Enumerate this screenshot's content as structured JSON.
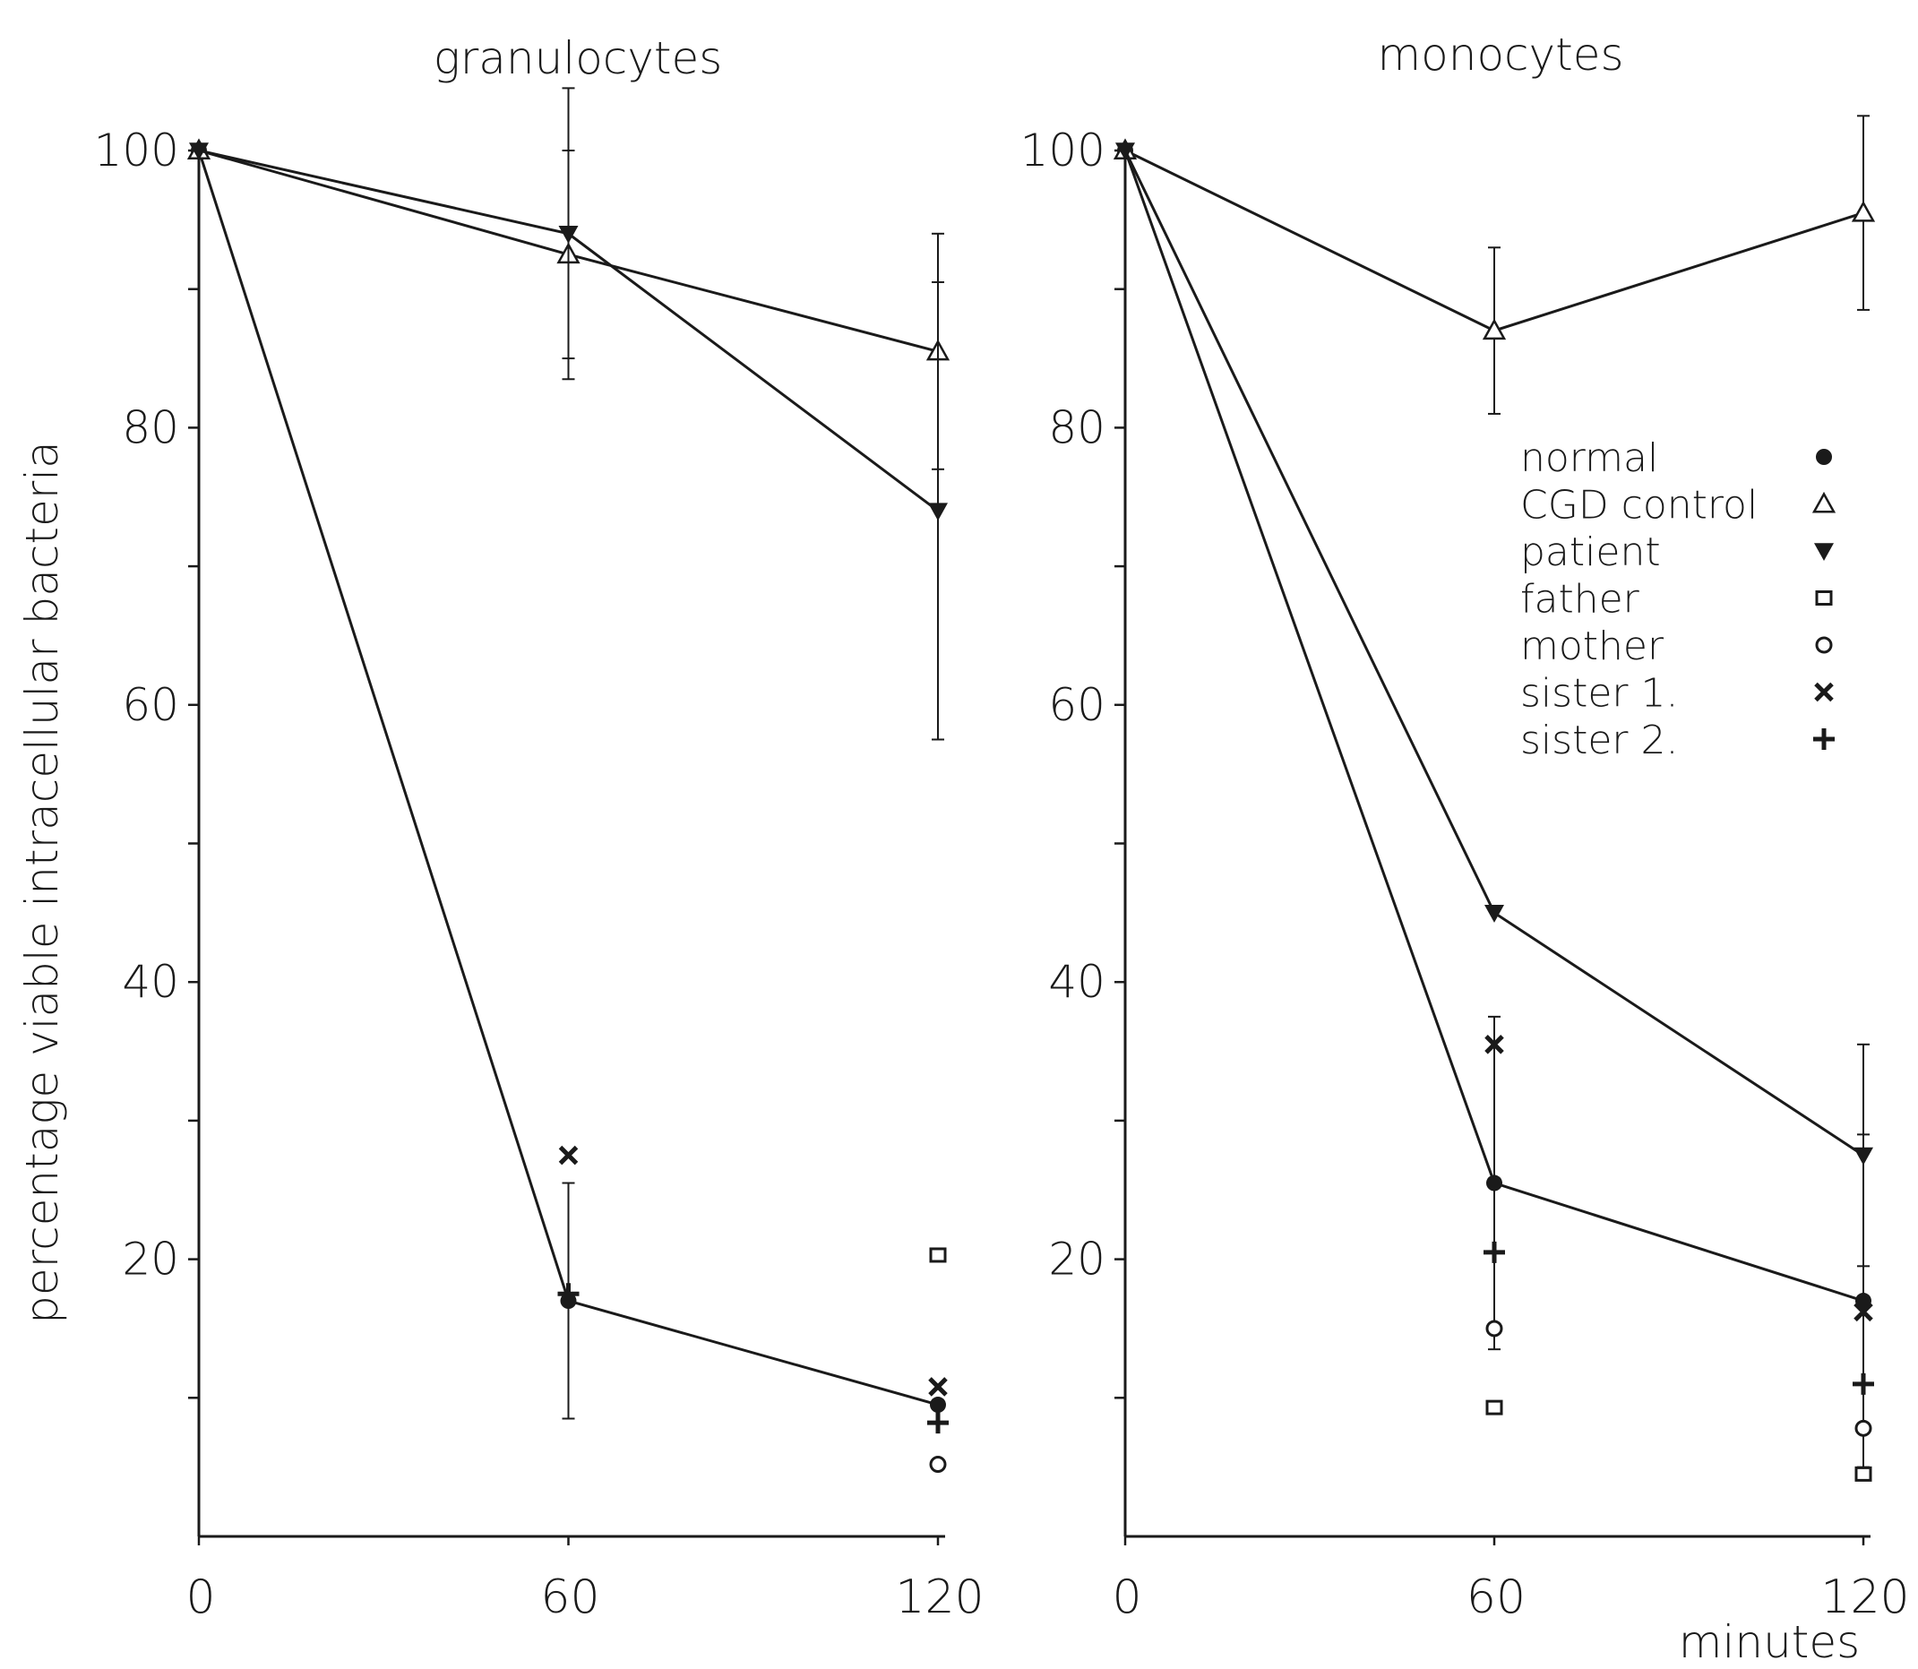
{
  "chart_data": [
    {
      "type": "line",
      "title": "granulocytes",
      "ylabel": "percentage viable intracellular bacteria",
      "xlabel": "",
      "xlim": [
        0,
        120
      ],
      "ylim": [
        0,
        100
      ],
      "xticks": [
        "0",
        "60",
        "120"
      ],
      "yticks": [
        "20",
        "40",
        "60",
        "80",
        "100"
      ],
      "series": [
        {
          "name": "normal",
          "marker": "circle",
          "connected": true,
          "x": [
            0,
            60,
            120
          ],
          "y": [
            100,
            17,
            9.5
          ],
          "err": [
            null,
            8.5,
            null
          ]
        },
        {
          "name": "CGD control",
          "marker": "triangle-open",
          "connected": true,
          "x": [
            0,
            60,
            120
          ],
          "y": [
            100,
            92.5,
            85.5
          ],
          "err": [
            null,
            7.5,
            8.5
          ]
        },
        {
          "name": "patient",
          "marker": "triangle-down-filled",
          "connected": true,
          "x": [
            0,
            60,
            120
          ],
          "y": [
            100,
            94,
            74
          ],
          "err": [
            null,
            10.5,
            16.5
          ]
        },
        {
          "name": "father",
          "marker": "square-open",
          "connected": false,
          "x": [
            120
          ],
          "y": [
            20.3
          ],
          "err": [
            null
          ]
        },
        {
          "name": "mother",
          "marker": "circle-open",
          "connected": false,
          "x": [
            120
          ],
          "y": [
            5.2
          ],
          "err": [
            null
          ]
        },
        {
          "name": "sister 1.",
          "marker": "x",
          "connected": false,
          "x": [
            60,
            120
          ],
          "y": [
            27.5,
            10.8
          ],
          "err": [
            null,
            null
          ]
        },
        {
          "name": "sister 2.",
          "marker": "plus",
          "connected": false,
          "x": [
            60,
            120
          ],
          "y": [
            17.5,
            8.2
          ],
          "err": [
            null,
            null
          ]
        }
      ]
    },
    {
      "type": "line",
      "title": "monocytes",
      "xlabel": "minutes",
      "ylabel": "",
      "xlim": [
        0,
        120
      ],
      "ylim": [
        0,
        100
      ],
      "xticks": [
        "0",
        "60",
        "120"
      ],
      "yticks": [
        "20",
        "40",
        "60",
        "80",
        "100"
      ],
      "legend_position": "right",
      "series": [
        {
          "name": "normal",
          "marker": "circle",
          "connected": true,
          "x": [
            0,
            60,
            120
          ],
          "y": [
            100,
            25.5,
            17
          ],
          "err": [
            null,
            12,
            12
          ]
        },
        {
          "name": "CGD control",
          "marker": "triangle-open",
          "connected": true,
          "x": [
            0,
            60,
            120
          ],
          "y": [
            100,
            87,
            95.5
          ],
          "err": [
            null,
            6,
            7
          ]
        },
        {
          "name": "patient",
          "marker": "triangle-down-filled",
          "connected": true,
          "x": [
            0,
            60,
            120
          ],
          "y": [
            100,
            45,
            27.5
          ],
          "err": [
            null,
            null,
            8
          ]
        },
        {
          "name": "father",
          "marker": "square-open",
          "connected": false,
          "x": [
            60,
            120
          ],
          "y": [
            9.3,
            4.5
          ],
          "err": [
            null,
            null
          ]
        },
        {
          "name": "mother",
          "marker": "circle-open",
          "connected": false,
          "x": [
            60,
            120
          ],
          "y": [
            15,
            7.8
          ],
          "err": [
            null,
            null
          ]
        },
        {
          "name": "sister 1.",
          "marker": "x",
          "connected": false,
          "x": [
            60,
            120
          ],
          "y": [
            35.5,
            16.2
          ],
          "err": [
            null,
            null
          ]
        },
        {
          "name": "sister 2.",
          "marker": "plus",
          "connected": false,
          "x": [
            60,
            120
          ],
          "y": [
            20.5,
            11
          ],
          "err": [
            null,
            null
          ]
        }
      ]
    }
  ],
  "colors": {
    "ink": "#1a1a1a",
    "background": "#ffffff"
  }
}
